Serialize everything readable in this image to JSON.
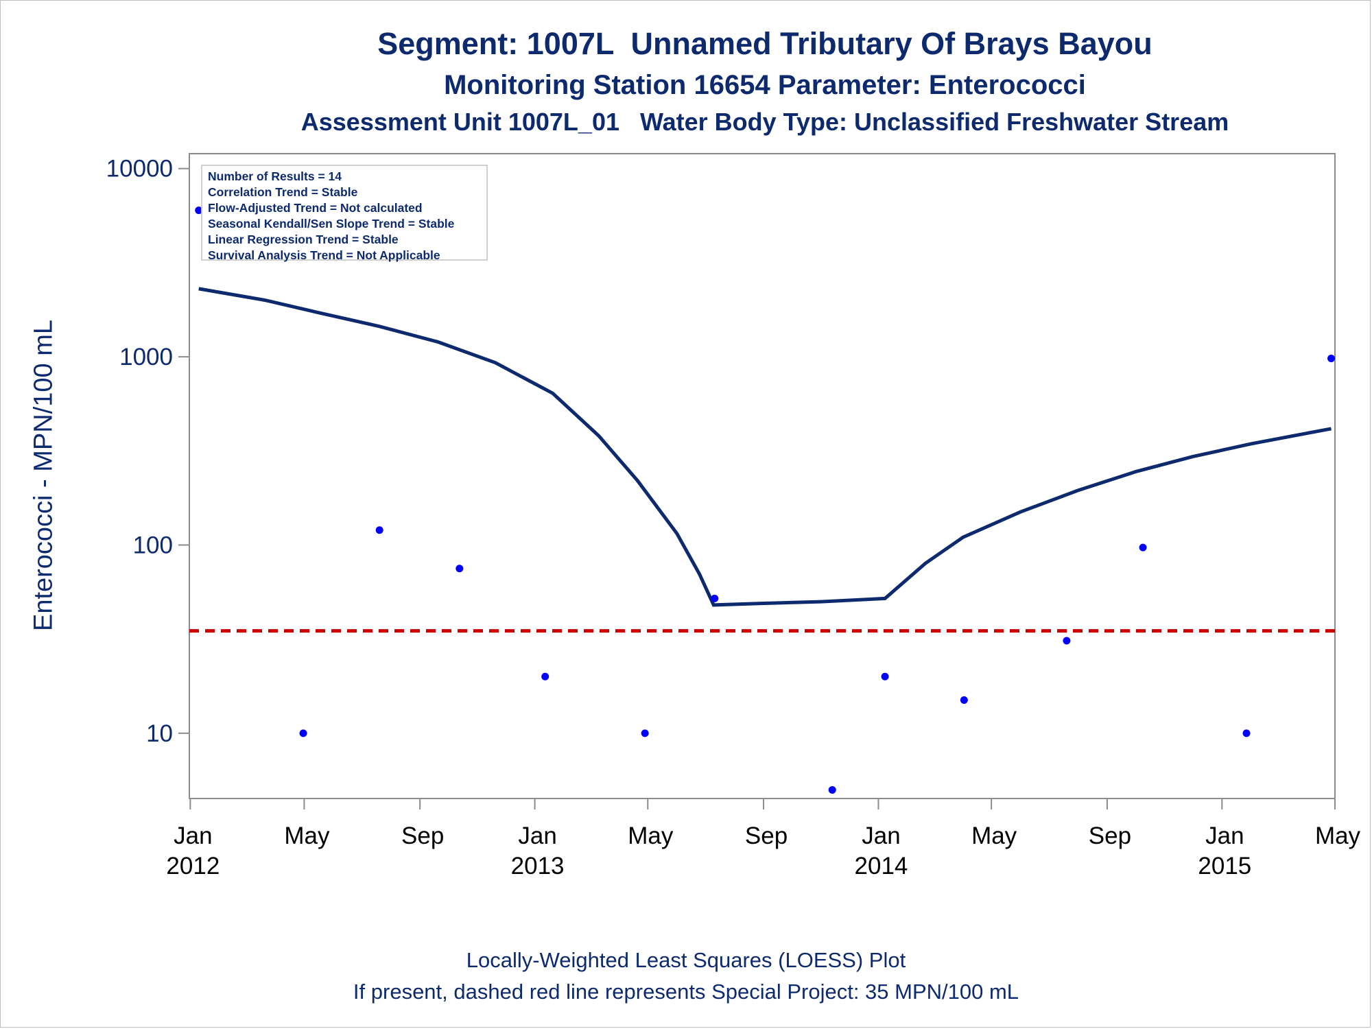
{
  "chart_data": {
    "type": "scatter",
    "title": "Segment: 1007L  Unnamed Tributary Of Brays Bayou",
    "subtitle": "Monitoring Station 16654 Parameter: Enterococci",
    "subtitle2": "Assessment Unit 1007L_01   Water Body Type: Unclassified Freshwater Stream",
    "ylabel": "Enterococci - MPN/100 mL",
    "yscale": "log",
    "ylim": [
      4.5,
      12000
    ],
    "xlim": [
      "2011-12-31",
      "2015-05-01"
    ],
    "y_ticks": [
      {
        "value": 10,
        "label": "10"
      },
      {
        "value": 100,
        "label": "100"
      },
      {
        "value": 1000,
        "label": "1000"
      },
      {
        "value": 10000,
        "label": "10000"
      }
    ],
    "x_ticks": [
      {
        "date": "2012-01-01",
        "label": "Jan",
        "year": "2012"
      },
      {
        "date": "2012-05-01",
        "label": "May",
        "year": ""
      },
      {
        "date": "2012-09-01",
        "label": "Sep",
        "year": ""
      },
      {
        "date": "2013-01-01",
        "label": "Jan",
        "year": "2013"
      },
      {
        "date": "2013-05-01",
        "label": "May",
        "year": ""
      },
      {
        "date": "2013-09-01",
        "label": "Sep",
        "year": ""
      },
      {
        "date": "2014-01-01",
        "label": "Jan",
        "year": "2014"
      },
      {
        "date": "2014-05-01",
        "label": "May",
        "year": ""
      },
      {
        "date": "2014-09-01",
        "label": "Sep",
        "year": ""
      },
      {
        "date": "2015-01-01",
        "label": "Jan",
        "year": "2015"
      },
      {
        "date": "2015-05-01",
        "label": "May",
        "year": ""
      }
    ],
    "series": [
      {
        "type": "scatter",
        "color": "#0000ff",
        "points": [
          {
            "x": "2012-01-10",
            "y": 6000
          },
          {
            "x": "2012-04-30",
            "y": 10
          },
          {
            "x": "2012-07-20",
            "y": 120
          },
          {
            "x": "2012-10-13",
            "y": 75
          },
          {
            "x": "2013-01-12",
            "y": 20
          },
          {
            "x": "2013-04-28",
            "y": 10
          },
          {
            "x": "2013-07-11",
            "y": 52
          },
          {
            "x": "2013-11-13",
            "y": 5
          },
          {
            "x": "2014-01-08",
            "y": 20
          },
          {
            "x": "2014-04-02",
            "y": 15
          },
          {
            "x": "2014-07-20",
            "y": 31
          },
          {
            "x": "2014-10-09",
            "y": 97
          },
          {
            "x": "2015-01-27",
            "y": 10
          },
          {
            "x": "2015-04-27",
            "y": 980
          }
        ]
      },
      {
        "type": "line",
        "color": "#0d2a6e",
        "points": [
          {
            "x": "2012-01-10",
            "y": 2300
          },
          {
            "x": "2012-03-20",
            "y": 2000
          },
          {
            "x": "2012-05-20",
            "y": 1700
          },
          {
            "x": "2012-07-20",
            "y": 1450
          },
          {
            "x": "2012-09-20",
            "y": 1200
          },
          {
            "x": "2012-11-20",
            "y": 930
          },
          {
            "x": "2013-01-20",
            "y": 640
          },
          {
            "x": "2013-03-10",
            "y": 380
          },
          {
            "x": "2013-04-20",
            "y": 220
          },
          {
            "x": "2013-06-01",
            "y": 115
          },
          {
            "x": "2013-06-25",
            "y": 70
          },
          {
            "x": "2013-07-10",
            "y": 48
          },
          {
            "x": "2013-09-01",
            "y": 49
          },
          {
            "x": "2013-11-01",
            "y": 50
          },
          {
            "x": "2014-01-08",
            "y": 52
          },
          {
            "x": "2014-02-20",
            "y": 80
          },
          {
            "x": "2014-04-01",
            "y": 110
          },
          {
            "x": "2014-06-01",
            "y": 150
          },
          {
            "x": "2014-08-01",
            "y": 195
          },
          {
            "x": "2014-10-01",
            "y": 245
          },
          {
            "x": "2014-12-01",
            "y": 295
          },
          {
            "x": "2015-02-01",
            "y": 345
          },
          {
            "x": "2015-04-27",
            "y": 415
          }
        ]
      }
    ],
    "reference_line": {
      "y": 35,
      "color": "#cc0000",
      "style": "dashed"
    },
    "stats_box": [
      "Number of Results = 14",
      "Correlation Trend = Stable",
      "Flow-Adjusted Trend = Not calculated",
      "Seasonal Kendall/Sen Slope Trend = Stable",
      "Linear Regression Trend = Stable",
      "Survival Analysis Trend = Not Applicable"
    ],
    "legend": "top-left",
    "grid": false,
    "footnotes": [
      "Locally-Weighted Least Squares (LOESS) Plot",
      "If present, dashed red line represents Special Project: 35 MPN/100 mL"
    ]
  }
}
